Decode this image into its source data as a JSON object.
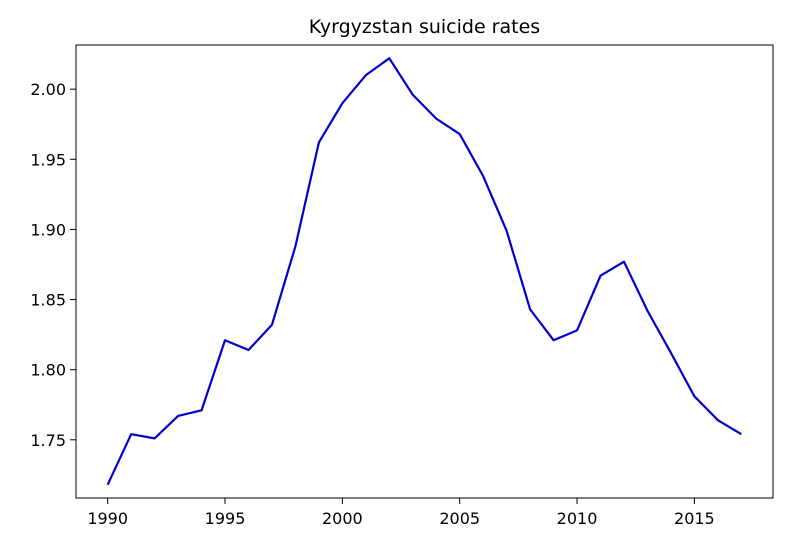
{
  "chart_data": {
    "type": "line",
    "title": "Kyrgyzstan suicide rates",
    "xlabel": "",
    "ylabel": "",
    "xlim": [
      1988.65,
      2018.35
    ],
    "ylim": [
      1.7085,
      2.0315
    ],
    "x_ticks": [
      1990,
      1995,
      2000,
      2005,
      2010,
      2015
    ],
    "y_ticks": [
      1.75,
      1.8,
      1.85,
      1.9,
      1.95,
      2.0
    ],
    "grid": false,
    "legend": "none",
    "series": [
      {
        "color": "#0000cc",
        "x": [
          1990,
          1991,
          1992,
          1993,
          1994,
          1995,
          1996,
          1997,
          1998,
          1999,
          2000,
          2001,
          2002,
          2003,
          2004,
          2005,
          2006,
          2007,
          2008,
          2009,
          2010,
          2011,
          2012,
          2013,
          2014,
          2015,
          2016,
          2017
        ],
        "y": [
          1.718,
          1.754,
          1.751,
          1.767,
          1.771,
          1.821,
          1.814,
          1.832,
          1.888,
          1.962,
          1.99,
          2.01,
          2.022,
          1.996,
          1.979,
          1.968,
          1.938,
          1.899,
          1.843,
          1.821,
          1.828,
          1.867,
          1.877,
          1.842,
          1.812,
          1.781,
          1.764,
          1.754
        ]
      }
    ]
  }
}
